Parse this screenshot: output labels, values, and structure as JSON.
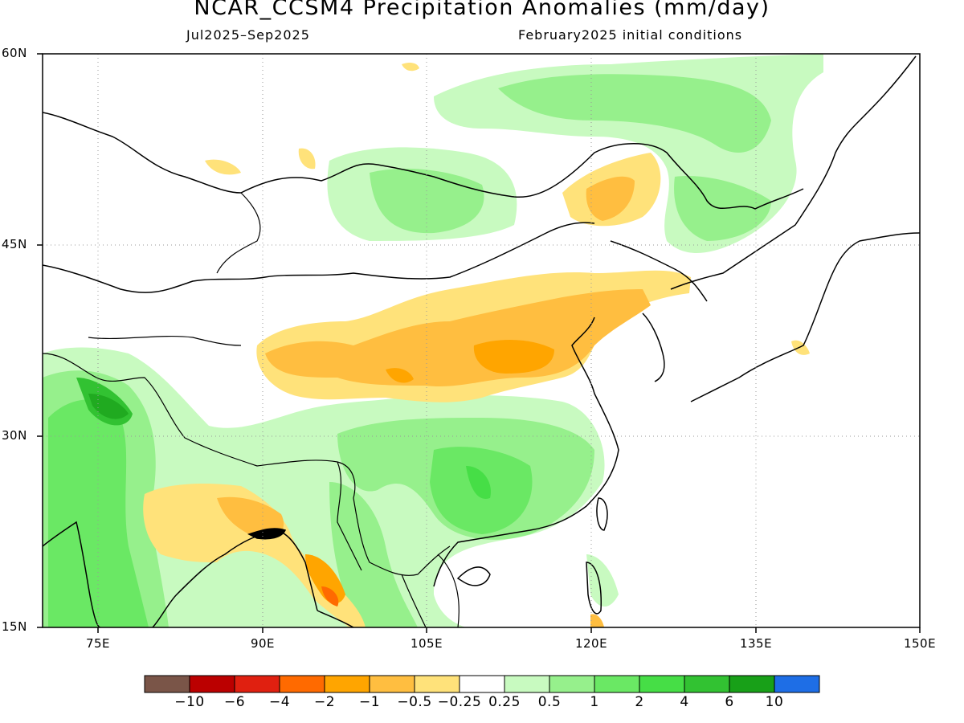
{
  "title": "NCAR_CCSM4 Precipitation Anomalies (mm/day)",
  "subtitle_left": "Jul2025–Sep2025",
  "subtitle_right": "February2025 initial conditions",
  "lat_labels": [
    "60N",
    "45N",
    "30N",
    "15N"
  ],
  "lon_labels": [
    "75E",
    "90E",
    "105E",
    "120E",
    "135E",
    "150E"
  ],
  "colorbar": {
    "colors": [
      "#7a5548",
      "#bb0000",
      "#e02010",
      "#ff6a00",
      "#ffa500",
      "#ffbe40",
      "#ffe27a",
      "#ffffff",
      "#c8fac0",
      "#96f08c",
      "#6ae864",
      "#46de46",
      "#32c232",
      "#18a018",
      "#1e6ee6"
    ],
    "labels": [
      "−10",
      "−6",
      "−4",
      "−2",
      "−1",
      "−0.5",
      "−0.25",
      "0.25",
      "0.5",
      "1",
      "2",
      "4",
      "6",
      "10"
    ]
  }
}
